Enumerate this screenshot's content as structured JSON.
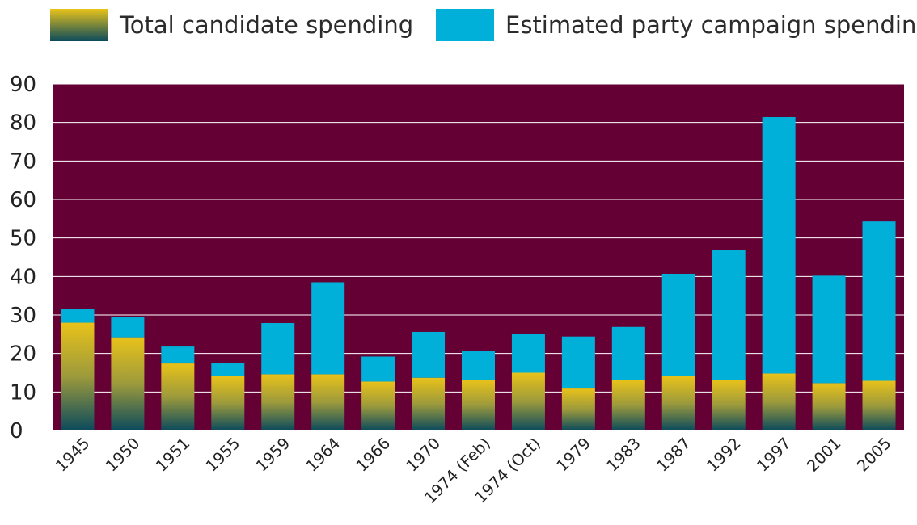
{
  "legend": {
    "candidate_label": "Total candidate spending",
    "party_label": "Estimated party campaign spending"
  },
  "colors": {
    "plot_background": "#650035",
    "party": "#00b0d8",
    "candidate_top": "#e8c21a",
    "candidate_bottom": "#0b4a5c",
    "gridline": "#ffffff"
  },
  "chart_data": {
    "type": "bar",
    "stacked": true,
    "grid": true,
    "legend_position": "top",
    "ylim": [
      0,
      90
    ],
    "yticks": [
      0,
      10,
      20,
      30,
      40,
      50,
      60,
      70,
      80,
      90
    ],
    "categories": [
      "1945",
      "1950",
      "1951",
      "1955",
      "1959",
      "1964",
      "1966",
      "1970",
      "1974 (Feb)",
      "1974 (Oct)",
      "1979",
      "1983",
      "1987",
      "1992",
      "1997",
      "2001",
      "2005"
    ],
    "series": [
      {
        "name": "Total candidate spending",
        "values": [
          28,
          24.2,
          17.4,
          14.1,
          14.6,
          14.6,
          12.7,
          13.7,
          13.1,
          15.0,
          10.9,
          13.1,
          14.1,
          13.1,
          14.8,
          12.3,
          12.9
        ]
      },
      {
        "name": "Estimated party campaign spending",
        "values": [
          3.5,
          5.2,
          4.4,
          3.5,
          13.3,
          23.9,
          6.5,
          11.9,
          7.6,
          10.0,
          13.5,
          13.8,
          26.6,
          33.8,
          66.6,
          27.9,
          41.4
        ]
      }
    ]
  }
}
